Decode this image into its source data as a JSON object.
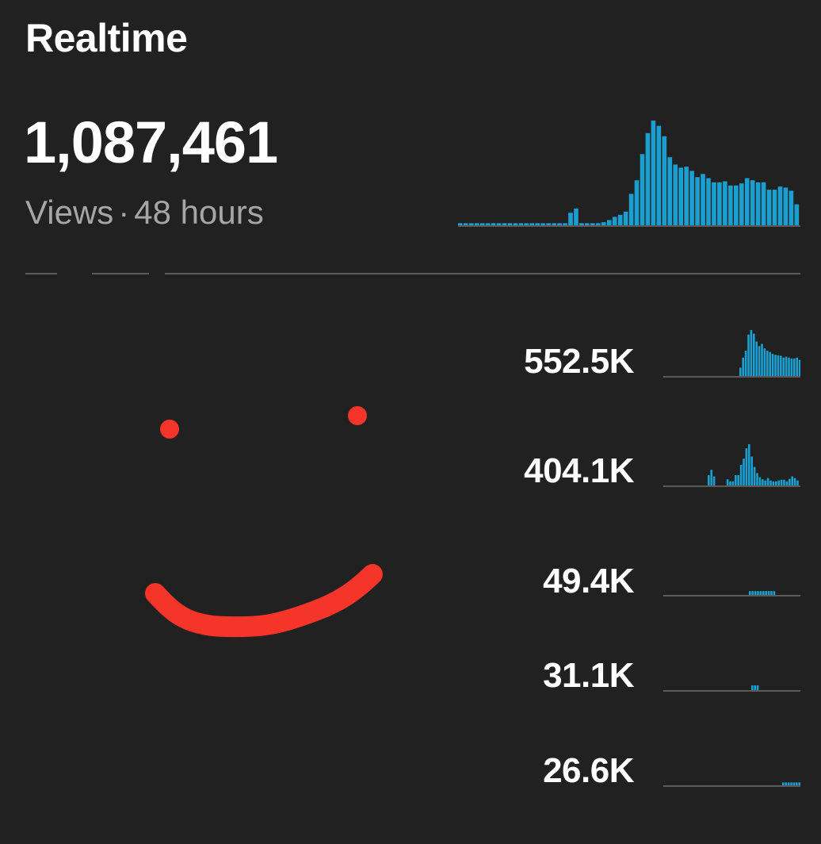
{
  "header": {
    "title": "Realtime",
    "total_views": "1,087,461",
    "metric": "Views",
    "separator": "·",
    "period": "48 hours"
  },
  "colors": {
    "background": "#212121",
    "bar": "#1a9fd1",
    "baseline": "#5a5a5a",
    "subtext": "#a6a6a6",
    "doodle": "#f5342a"
  },
  "main_sparkline": {
    "values": [
      0.02,
      0.02,
      0.02,
      0.02,
      0.02,
      0.02,
      0.02,
      0.02,
      0.02,
      0.02,
      0.02,
      0.02,
      0.02,
      0.02,
      0.02,
      0.02,
      0.02,
      0.02,
      0.02,
      0.02,
      0.12,
      0.16,
      0.02,
      0.02,
      0.02,
      0.02,
      0.03,
      0.05,
      0.08,
      0.1,
      0.13,
      0.3,
      0.43,
      0.68,
      0.88,
      1.0,
      0.95,
      0.85,
      0.65,
      0.58,
      0.55,
      0.56,
      0.52,
      0.46,
      0.49,
      0.45,
      0.41,
      0.41,
      0.42,
      0.38,
      0.38,
      0.4,
      0.45,
      0.43,
      0.41,
      0.41,
      0.34,
      0.34,
      0.37,
      0.36,
      0.33,
      0.2
    ]
  },
  "rows": [
    {
      "value": "552.5K",
      "sparkline": [
        0.18,
        0.4,
        0.55,
        0.9,
        1.0,
        0.92,
        0.75,
        0.65,
        0.7,
        0.6,
        0.55,
        0.52,
        0.48,
        0.46,
        0.45,
        0.44,
        0.4,
        0.42,
        0.4,
        0.38,
        0.38,
        0.4,
        0.35,
        0.36
      ]
    },
    {
      "value": "404.1K",
      "sparkline": [
        0.25,
        0.38,
        0.22,
        0,
        0,
        0,
        0,
        0.15,
        0.1,
        0.1,
        0.25,
        0.25,
        0.5,
        0.65,
        0.9,
        1.0,
        0.7,
        0.45,
        0.3,
        0.2,
        0.15,
        0.12,
        0.18,
        0.12,
        0.1,
        0.1,
        0.12,
        0.14,
        0.14,
        0.1,
        0.16,
        0.22,
        0.18,
        0.12
      ]
    },
    {
      "value": "49.4K",
      "sparkline": [
        0.6,
        0.6,
        0.6,
        0.6,
        0.6,
        0.6,
        0.6,
        0.6,
        0.6,
        0.6
      ]
    },
    {
      "value": "31.1K",
      "sparkline": [
        1.0,
        1.0,
        1.0
      ]
    },
    {
      "value": "26.6K",
      "sparkline": [
        0.6,
        0.6,
        0.6,
        0.6,
        0.6,
        0.6,
        0.6,
        0.6,
        0.6
      ]
    }
  ]
}
